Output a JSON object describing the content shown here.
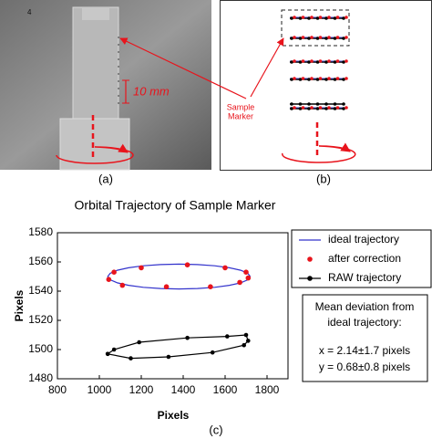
{
  "panel_a": {
    "label": "(a)",
    "corner_mark": "4",
    "scale_text": "10 mm"
  },
  "panel_b": {
    "label": "(b)",
    "marker_label": [
      "Sample",
      "Marker"
    ]
  },
  "chart_data": {
    "type": "line",
    "title": "Orbital Trajectory of Sample Marker",
    "panel_label": "(c)",
    "x_label": "Pixels",
    "y_label": "Pixels",
    "xlim": [
      800,
      1900
    ],
    "xticks": [
      800,
      1000,
      1200,
      1400,
      1600,
      1800
    ],
    "ylim": [
      1480,
      1580
    ],
    "yticks": [
      1480,
      1500,
      1520,
      1540,
      1560,
      1580
    ],
    "legend": "right",
    "annotation": [
      "Mean deviation from",
      "ideal trajectory:",
      "x = 2.14±1.7 pixels",
      "y = 0.68±0.8 pixels"
    ],
    "series": [
      {
        "name": "ideal trajectory",
        "color": "#3333cc",
        "mode": "line",
        "x": [
          1720,
          1708.4,
          1674.4,
          1620.4,
          1550,
          1468.1,
          1380,
          1291.9,
          1210,
          1139.6,
          1085.6,
          1051.6,
          1040,
          1051.6,
          1085.6,
          1139.6,
          1210,
          1291.9,
          1380,
          1468.1,
          1550,
          1620.4,
          1674.4,
          1708.4,
          1720
        ],
        "values": [
          1550,
          1552.2,
          1554.3,
          1556.0,
          1557.4,
          1558.2,
          1558.5,
          1558.2,
          1557.4,
          1556.0,
          1554.3,
          1552.2,
          1550,
          1547.8,
          1545.7,
          1544.0,
          1542.6,
          1541.8,
          1541.5,
          1541.8,
          1542.6,
          1544.0,
          1545.7,
          1547.8,
          1550
        ]
      },
      {
        "name": "after correction",
        "color": "#e8141c",
        "mode": "markers",
        "x": [
          1045,
          1070,
          1110,
          1200,
          1320,
          1420,
          1530,
          1600,
          1670,
          1700,
          1710
        ],
        "values": [
          1548,
          1553,
          1544,
          1556,
          1543,
          1558,
          1543,
          1556,
          1546,
          1553,
          1549
        ]
      },
      {
        "name": "RAW trajectory",
        "color": "#000000",
        "mode": "lines+markers",
        "x": [
          1040,
          1070,
          1190,
          1420,
          1610,
          1700,
          1710,
          1690,
          1540,
          1330,
          1150,
          1040
        ],
        "values": [
          1497,
          1500,
          1505,
          1508,
          1509,
          1510,
          1506,
          1503,
          1498,
          1495,
          1494,
          1497
        ]
      }
    ]
  }
}
